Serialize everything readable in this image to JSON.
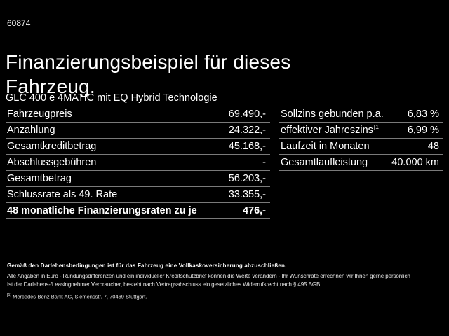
{
  "page": {
    "ref_number": "60874",
    "title": "Finanzierungsbeispiel für dieses Fahrzeug.",
    "subtitle": "GLC 400 e 4MATIC mit EQ Hybrid Technologie",
    "background_color": "#000000",
    "text_color": "#ffffff",
    "separator_color": "#7a7a7a"
  },
  "financing_table": {
    "rows": [
      {
        "label": "Fahrzeugpreis",
        "value": "69.490,-"
      },
      {
        "label": "Anzahlung",
        "value": "24.322,-"
      },
      {
        "label": "Gesamtkreditbetrag",
        "value": "45.168,-"
      },
      {
        "label": "Abschlussgebühren",
        "value": "-"
      },
      {
        "label": "Gesamtbetrag",
        "value": "56.203,-"
      },
      {
        "label": "Schlussrate als 49. Rate",
        "value": "33.355,-"
      },
      {
        "label": "48 monatliche Finanzierungsraten zu je",
        "value": "476,-"
      }
    ]
  },
  "conditions_table": {
    "rows": [
      {
        "label": "Sollzins gebunden p.a.",
        "sup": "",
        "value": "6,83 %"
      },
      {
        "label": "effektiver Jahreszins",
        "sup": "[1]",
        "value": "6,99 %"
      },
      {
        "label": "Laufzeit in Monaten",
        "sup": "",
        "value": "48"
      },
      {
        "label": "Gesamtlaufleistung",
        "sup": "",
        "value": "40.000 km"
      }
    ]
  },
  "footer": {
    "bold_note": "Gemäß den Darlehensbedingungen ist für das Fahrzeug eine Vollkaskoversicherung abzuschließen.",
    "note_line1": "Alle Angaben in Euro - Rundungsdifferenzen und ein individueller Kreditschutzbrief können die Werte verändern - Ihr Wunschrate errechnen wir Ihnen gerne persönlich",
    "note_line2": "Ist der Darlehens-/Leasingnehmer Verbraucher, besteht nach Vertragsabschluss ein gesetzliches Widerrufsrecht nach § 495 BGB",
    "footnote_marker": "[1]",
    "footnote_text": "Mercedes-Benz Bank AG, Siemensstr. 7, 70469 Stuttgart."
  }
}
